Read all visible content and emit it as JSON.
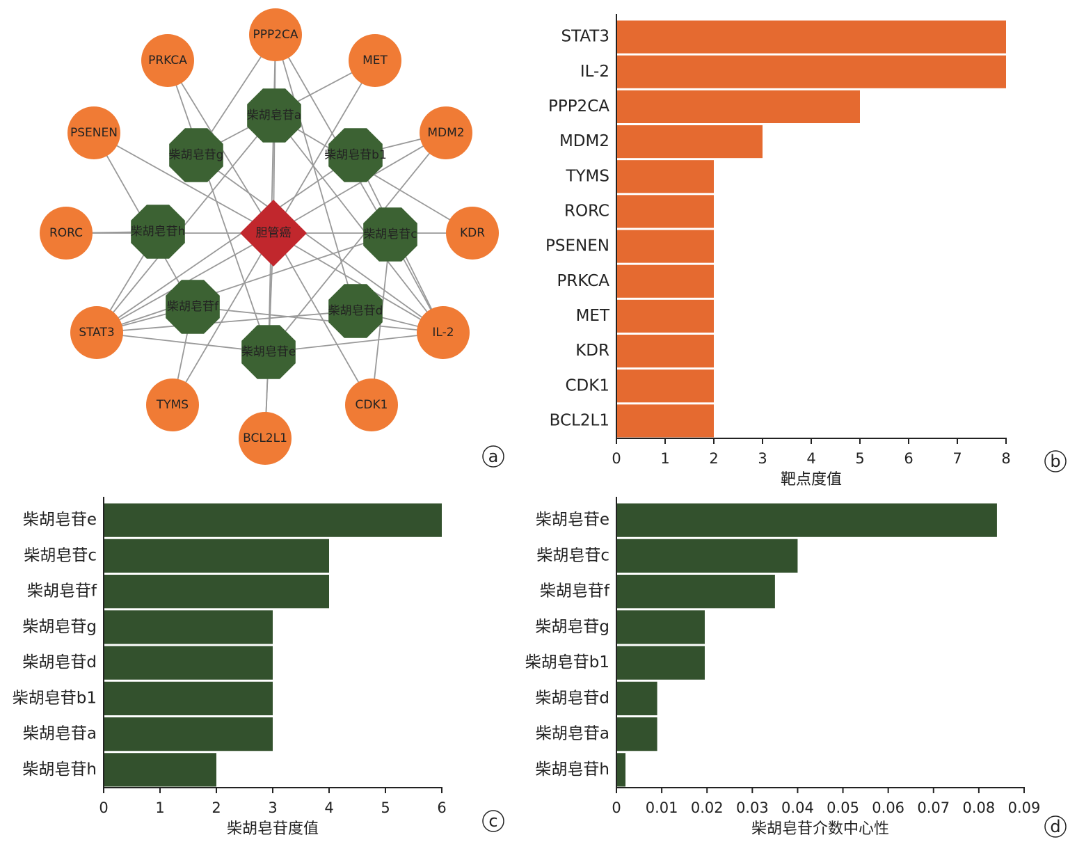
{
  "network": {
    "nodes": [
      {
        "label": "PPP2CA",
        "kind": "target"
      },
      {
        "label": "PRKCA",
        "kind": "target"
      },
      {
        "label": "MET",
        "kind": "target"
      },
      {
        "label": "PSENEN",
        "kind": "target"
      },
      {
        "label": "MDM2",
        "kind": "target"
      },
      {
        "label": "RORC",
        "kind": "target"
      },
      {
        "label": "KDR",
        "kind": "target"
      },
      {
        "label": "STAT3",
        "kind": "target"
      },
      {
        "label": "IL-2",
        "kind": "target"
      },
      {
        "label": "TYMS",
        "kind": "target"
      },
      {
        "label": "CDK1",
        "kind": "target"
      },
      {
        "label": "BCL2L1",
        "kind": "target"
      },
      {
        "label": "柴胡皂苷a",
        "kind": "compound"
      },
      {
        "label": "柴胡皂苷g",
        "kind": "compound"
      },
      {
        "label": "柴胡皂苷b1",
        "kind": "compound"
      },
      {
        "label": "柴胡皂苷h",
        "kind": "compound"
      },
      {
        "label": "柴胡皂苷c",
        "kind": "compound"
      },
      {
        "label": "柴胡皂苷f",
        "kind": "compound"
      },
      {
        "label": "柴胡皂苷d",
        "kind": "compound"
      },
      {
        "label": "柴胡皂苷e",
        "kind": "compound"
      },
      {
        "label": "胆管癌",
        "kind": "disease"
      }
    ],
    "edges": [
      [
        20,
        0
      ],
      [
        20,
        1
      ],
      [
        20,
        2
      ],
      [
        20,
        3
      ],
      [
        20,
        4
      ],
      [
        20,
        5
      ],
      [
        20,
        6
      ],
      [
        20,
        7
      ],
      [
        20,
        8
      ],
      [
        20,
        9
      ],
      [
        20,
        10
      ],
      [
        20,
        11
      ],
      [
        7,
        12
      ],
      [
        7,
        14
      ],
      [
        7,
        16
      ],
      [
        7,
        18
      ],
      [
        7,
        19
      ],
      [
        7,
        17
      ],
      [
        7,
        15
      ],
      [
        8,
        12
      ],
      [
        8,
        14
      ],
      [
        8,
        16
      ],
      [
        8,
        18
      ],
      [
        8,
        19
      ],
      [
        8,
        17
      ],
      [
        8,
        13
      ],
      [
        0,
        19
      ],
      [
        0,
        16
      ],
      [
        0,
        18
      ],
      [
        0,
        13
      ],
      [
        4,
        14
      ],
      [
        4,
        19
      ],
      [
        1,
        19
      ],
      [
        3,
        17
      ],
      [
        5,
        15
      ],
      [
        9,
        17
      ],
      [
        11,
        19
      ],
      [
        10,
        16
      ],
      [
        6,
        12
      ],
      [
        2,
        13
      ]
    ]
  },
  "panel_labels": [
    "a",
    "b",
    "c",
    "d"
  ],
  "chart_data": [
    {
      "type": "barh",
      "xlabel": "靶点度值",
      "color": "#e56a30",
      "categories": [
        "STAT3",
        "IL-2",
        "PPP2CA",
        "MDM2",
        "TYMS",
        "RORC",
        "PSENEN",
        "PRKCA",
        "MET",
        "KDR",
        "CDK1",
        "BCL2L1"
      ],
      "values": [
        8,
        8,
        5,
        3,
        2,
        2,
        2,
        2,
        2,
        2,
        2,
        2
      ],
      "xlim": [
        0,
        8
      ],
      "xticks": [
        0,
        1,
        2,
        3,
        4,
        5,
        6,
        7,
        8
      ]
    },
    {
      "type": "barh",
      "xlabel": "柴胡皂苷度值",
      "color": "#33512d",
      "categories": [
        "柴胡皂苷e",
        "柴胡皂苷c",
        "柴胡皂苷f",
        "柴胡皂苷g",
        "柴胡皂苷d",
        "柴胡皂苷b1",
        "柴胡皂苷a",
        "柴胡皂苷h"
      ],
      "values": [
        6,
        4,
        4,
        3,
        3,
        3,
        3,
        2
      ],
      "xlim": [
        0,
        6
      ],
      "xticks": [
        0,
        1,
        2,
        3,
        4,
        5,
        6
      ]
    },
    {
      "type": "barh",
      "xlabel": "柴胡皂苷介数中心性",
      "color": "#33512d",
      "categories": [
        "柴胡皂苷e",
        "柴胡皂苷c",
        "柴胡皂苷f",
        "柴胡皂苷g",
        "柴胡皂苷b1",
        "柴胡皂苷d",
        "柴胡皂苷a",
        "柴胡皂苷h"
      ],
      "values": [
        0.084,
        0.04,
        0.035,
        0.0195,
        0.0195,
        0.009,
        0.009,
        0.002
      ],
      "xlim": [
        0,
        0.09
      ],
      "xticks": [
        0,
        0.01,
        0.02,
        0.03,
        0.04,
        0.05,
        0.06,
        0.07,
        0.08,
        0.09
      ]
    }
  ]
}
